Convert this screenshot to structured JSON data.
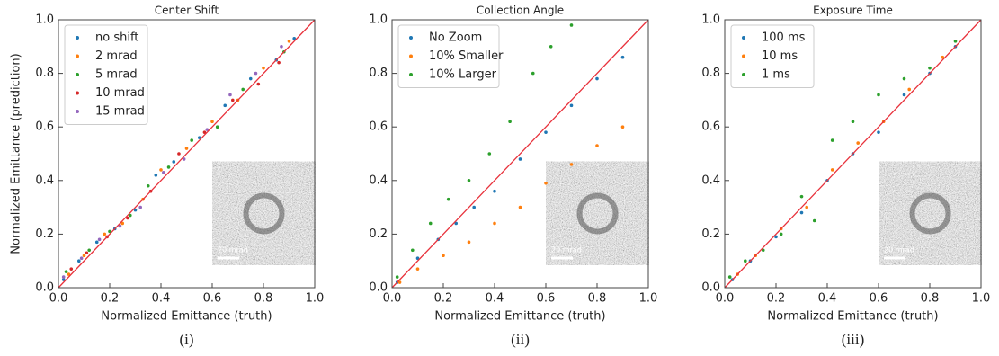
{
  "chart_data": [
    {
      "type": "scatter",
      "title": "Center Shift",
      "xlabel": "Normalized Emittance (truth)",
      "ylabel": "Normalized Emittance (prediction)",
      "panel_label": "(i)",
      "inset_label": "20 mrad",
      "legend": "upper left",
      "diagonal_color": "#e8323c",
      "xlim": [
        0,
        1
      ],
      "ylim": [
        0,
        1
      ],
      "xticks": [
        {
          "value": 0,
          "label": "0.0"
        },
        0.2,
        0.4,
        0.6,
        0.8,
        {
          "value": 1,
          "label": "1.0"
        }
      ],
      "yticks": [
        {
          "value": 0,
          "label": "0.0"
        },
        0.2,
        0.4,
        0.6,
        0.8,
        {
          "value": 1,
          "label": "1.0"
        }
      ],
      "series": [
        {
          "name": "no shift",
          "color": "#1f77b4",
          "x": [
            0.02,
            0.08,
            0.15,
            0.22,
            0.3,
            0.38,
            0.45,
            0.55,
            0.65,
            0.75,
            0.85,
            0.92
          ],
          "y": [
            0.03,
            0.1,
            0.17,
            0.22,
            0.29,
            0.42,
            0.47,
            0.56,
            0.68,
            0.78,
            0.85,
            0.93
          ]
        },
        {
          "name": "2 mrad",
          "color": "#ff7f0e",
          "x": [
            0.04,
            0.1,
            0.18,
            0.25,
            0.33,
            0.4,
            0.5,
            0.6,
            0.7,
            0.8,
            0.9
          ],
          "y": [
            0.05,
            0.12,
            0.2,
            0.24,
            0.33,
            0.44,
            0.52,
            0.62,
            0.7,
            0.82,
            0.92
          ]
        },
        {
          "name": "5 mrad",
          "color": "#2ca02c",
          "x": [
            0.03,
            0.12,
            0.2,
            0.28,
            0.35,
            0.43,
            0.52,
            0.62,
            0.72,
            0.88
          ],
          "y": [
            0.06,
            0.14,
            0.21,
            0.27,
            0.38,
            0.45,
            0.55,
            0.6,
            0.74,
            0.88
          ]
        },
        {
          "name": "10 mrad",
          "color": "#d62728",
          "x": [
            0.05,
            0.11,
            0.19,
            0.27,
            0.36,
            0.47,
            0.57,
            0.68,
            0.78,
            0.86
          ],
          "y": [
            0.07,
            0.13,
            0.19,
            0.26,
            0.36,
            0.5,
            0.58,
            0.7,
            0.76,
            0.84
          ]
        },
        {
          "name": "15 mrad",
          "color": "#9467bd",
          "x": [
            0.02,
            0.09,
            0.16,
            0.24,
            0.32,
            0.41,
            0.49,
            0.58,
            0.67,
            0.77,
            0.87
          ],
          "y": [
            0.04,
            0.11,
            0.18,
            0.23,
            0.3,
            0.43,
            0.48,
            0.59,
            0.72,
            0.8,
            0.9
          ]
        }
      ]
    },
    {
      "type": "scatter",
      "title": "Collection Angle",
      "xlabel": "Normalized Emittance (truth)",
      "panel_label": "(ii)",
      "inset_label": "20 mrad",
      "legend": "upper left",
      "diagonal_color": "#e8323c",
      "xlim": [
        0,
        1
      ],
      "ylim": [
        0,
        1
      ],
      "xticks": [
        {
          "value": 0,
          "label": "0.0"
        },
        0.2,
        0.4,
        0.6,
        0.8,
        {
          "value": 1,
          "label": "1.0"
        }
      ],
      "yticks": [
        {
          "value": 0,
          "label": "0.0"
        },
        0.2,
        0.4,
        0.6,
        0.8,
        {
          "value": 1,
          "label": "1.0"
        }
      ],
      "series": [
        {
          "name": "No Zoom",
          "color": "#1f77b4",
          "x": [
            0.02,
            0.1,
            0.18,
            0.25,
            0.32,
            0.4,
            0.5,
            0.6,
            0.7,
            0.8,
            0.9
          ],
          "y": [
            0.02,
            0.11,
            0.18,
            0.24,
            0.3,
            0.36,
            0.48,
            0.58,
            0.68,
            0.78,
            0.86
          ]
        },
        {
          "name": "10% Smaller",
          "color": "#ff7f0e",
          "x": [
            0.03,
            0.1,
            0.2,
            0.3,
            0.4,
            0.5,
            0.6,
            0.7,
            0.8,
            0.9
          ],
          "y": [
            0.02,
            0.07,
            0.12,
            0.17,
            0.24,
            0.3,
            0.39,
            0.46,
            0.53,
            0.6
          ]
        },
        {
          "name": "10% Larger",
          "color": "#2ca02c",
          "x": [
            0.02,
            0.08,
            0.15,
            0.22,
            0.3,
            0.38,
            0.46,
            0.55,
            0.62,
            0.7
          ],
          "y": [
            0.04,
            0.14,
            0.24,
            0.33,
            0.4,
            0.5,
            0.62,
            0.8,
            0.9,
            0.98
          ]
        }
      ]
    },
    {
      "type": "scatter",
      "title": "Exposure Time",
      "xlabel": "Normalized Emittance (truth)",
      "panel_label": "(iii)",
      "inset_label": "20 mrad",
      "legend": "upper left",
      "diagonal_color": "#e8323c",
      "xlim": [
        0,
        1
      ],
      "ylim": [
        0,
        1
      ],
      "xticks": [
        {
          "value": 0,
          "label": "0.0"
        },
        0.2,
        0.4,
        0.6,
        0.8,
        {
          "value": 1,
          "label": "1.0"
        }
      ],
      "yticks": [
        {
          "value": 0,
          "label": "0.0"
        },
        0.2,
        0.4,
        0.6,
        0.8,
        {
          "value": 1,
          "label": "1.0"
        }
      ],
      "series": [
        {
          "name": "100 ms",
          "color": "#1f77b4",
          "x": [
            0.03,
            0.1,
            0.2,
            0.3,
            0.4,
            0.5,
            0.6,
            0.7,
            0.8,
            0.9
          ],
          "y": [
            0.03,
            0.1,
            0.19,
            0.28,
            0.4,
            0.5,
            0.58,
            0.72,
            0.8,
            0.9
          ]
        },
        {
          "name": "10 ms",
          "color": "#ff7f0e",
          "x": [
            0.05,
            0.12,
            0.22,
            0.32,
            0.42,
            0.52,
            0.62,
            0.72,
            0.85
          ],
          "y": [
            0.05,
            0.12,
            0.22,
            0.3,
            0.44,
            0.54,
            0.62,
            0.74,
            0.86
          ]
        },
        {
          "name": "1 ms",
          "color": "#2ca02c",
          "x": [
            0.02,
            0.08,
            0.15,
            0.22,
            0.3,
            0.35,
            0.42,
            0.5,
            0.6,
            0.7,
            0.8,
            0.9
          ],
          "y": [
            0.04,
            0.1,
            0.14,
            0.2,
            0.34,
            0.25,
            0.55,
            0.62,
            0.72,
            0.78,
            0.82,
            0.92
          ]
        }
      ]
    }
  ]
}
